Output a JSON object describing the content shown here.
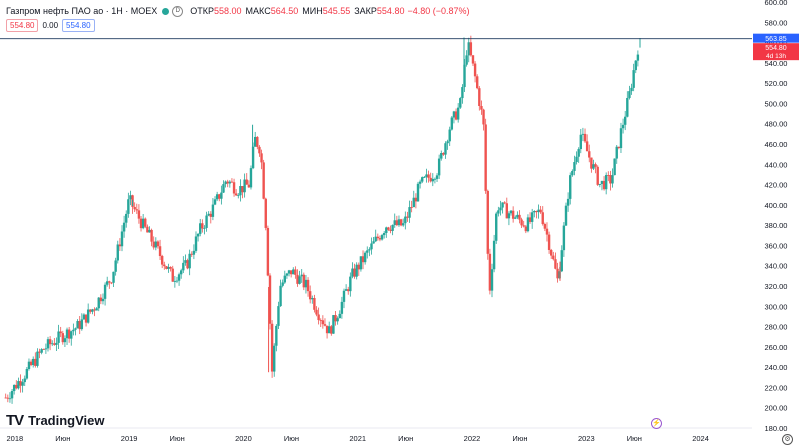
{
  "legend": {
    "title": "Газпром нефть ПАО ао · 1Н · MOEX",
    "open_label": "ОТКР",
    "open": "558.00",
    "high_label": "МАКС",
    "high": "564.50",
    "low_label": "МИН",
    "low": "545.55",
    "close_label": "ЗАКР",
    "close": "554.80",
    "change": "−4.80 (−0.87%)",
    "sell": "554.80",
    "spread": "0.00",
    "buy": "554.80",
    "dot_color": "#26a69a"
  },
  "price_tags": {
    "line_value": "563.85",
    "last_value": "554.80",
    "countdown": "4d 13h"
  },
  "branding": {
    "name": "TradingView",
    "logo": "TV"
  },
  "colors": {
    "up": "#26a69a",
    "down": "#ef5350",
    "line": "#131722",
    "tag_line": "#2962ff",
    "tag_last": "#f23645"
  },
  "chart_data": {
    "type": "candlestick",
    "y_range": [
      180,
      600
    ],
    "y_ticks": [
      180,
      200,
      220,
      240,
      260,
      280,
      300,
      320,
      340,
      360,
      380,
      400,
      420,
      440,
      460,
      480,
      500,
      520,
      540,
      560,
      580,
      600
    ],
    "x_labels": [
      "2018",
      "Июн",
      "2019",
      "Июн",
      "2020",
      "Июн",
      "2021",
      "Июн",
      "2022",
      "Июн",
      "2023",
      "Июн",
      "2024"
    ],
    "horizontal_line": 563.85,
    "close_path": [
      [
        2017.92,
        210
      ],
      [
        2018.1,
        235
      ],
      [
        2018.25,
        258
      ],
      [
        2018.4,
        270
      ],
      [
        2018.55,
        280
      ],
      [
        2018.7,
        300
      ],
      [
        2018.85,
        330
      ],
      [
        2019.0,
        405
      ],
      [
        2019.12,
        380
      ],
      [
        2019.25,
        355
      ],
      [
        2019.38,
        328
      ],
      [
        2019.5,
        340
      ],
      [
        2019.62,
        375
      ],
      [
        2019.75,
        400
      ],
      [
        2019.85,
        425
      ],
      [
        2019.95,
        415
      ],
      [
        2020.05,
        420
      ],
      [
        2020.1,
        465
      ],
      [
        2020.15,
        455
      ],
      [
        2020.2,
        375
      ],
      [
        2020.25,
        235
      ],
      [
        2020.32,
        320
      ],
      [
        2020.42,
        335
      ],
      [
        2020.55,
        320
      ],
      [
        2020.65,
        295
      ],
      [
        2020.75,
        275
      ],
      [
        2020.85,
        300
      ],
      [
        2020.95,
        330
      ],
      [
        2021.1,
        355
      ],
      [
        2021.25,
        380
      ],
      [
        2021.4,
        380
      ],
      [
        2021.55,
        420
      ],
      [
        2021.7,
        435
      ],
      [
        2021.8,
        475
      ],
      [
        2021.9,
        500
      ],
      [
        2021.96,
        560
      ],
      [
        2022.02,
        530
      ],
      [
        2022.1,
        480
      ],
      [
        2022.15,
        310
      ],
      [
        2022.22,
        400
      ],
      [
        2022.35,
        390
      ],
      [
        2022.48,
        380
      ],
      [
        2022.6,
        395
      ],
      [
        2022.68,
        360
      ],
      [
        2022.75,
        325
      ],
      [
        2022.85,
        420
      ],
      [
        2022.95,
        470
      ],
      [
        2023.05,
        440
      ],
      [
        2023.12,
        420
      ],
      [
        2023.22,
        425
      ],
      [
        2023.3,
        470
      ],
      [
        2023.38,
        510
      ],
      [
        2023.45,
        555
      ]
    ],
    "peaks": [
      [
        2019.03,
        405,
        "up"
      ],
      [
        2020.08,
        479,
        "up"
      ],
      [
        2020.22,
        235,
        "down"
      ],
      [
        2021.93,
        565,
        "up"
      ],
      [
        2022.15,
        310,
        "down"
      ],
      [
        2022.77,
        325,
        "down"
      ],
      [
        2023.47,
        564.5,
        "up"
      ]
    ]
  }
}
